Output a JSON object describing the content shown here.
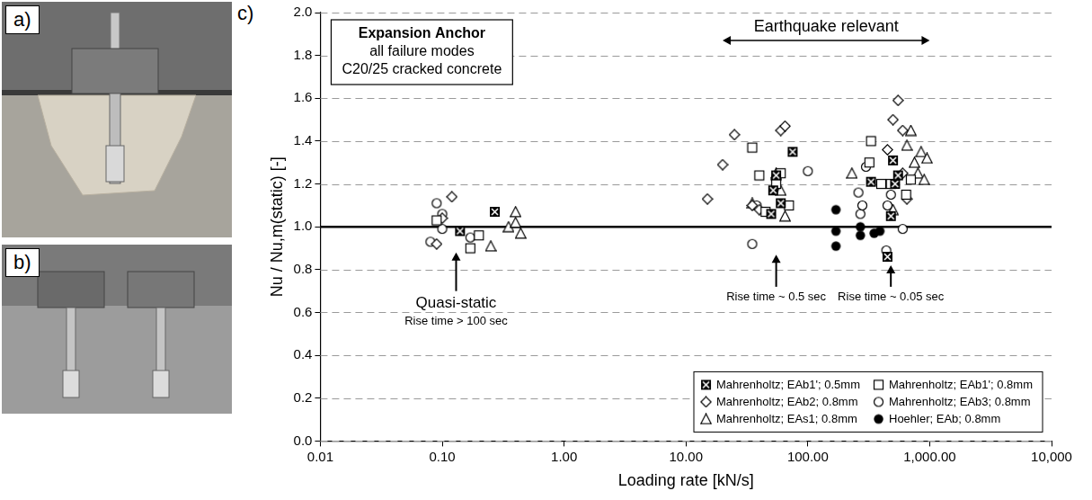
{
  "photos": [
    {
      "label": "a)"
    },
    {
      "label": "b)"
    }
  ],
  "chart_data": {
    "type": "scatter",
    "panel_label": "c)",
    "x_label": "Loading rate [kN/s]",
    "y_label": "Nu / Nu,m(static) [-]",
    "log": "x",
    "grid": true,
    "legend": "lower right",
    "xlim": [
      0.01,
      10000
    ],
    "xticks": [
      0.01,
      {
        "value": 0.1,
        "label": "0.10"
      },
      {
        "value": 1,
        "label": "1.00"
      },
      {
        "value": 10,
        "label": "10.00"
      },
      {
        "value": 100,
        "label": "100.00"
      },
      {
        "value": 1000,
        "label": "1,000.00"
      },
      {
        "value": 10000,
        "label": "10,000"
      }
    ],
    "ylim": [
      0,
      2
    ],
    "yticks": [
      {
        "value": 0,
        "label": "0.0"
      },
      0.2,
      0.4,
      0.6,
      0.8,
      {
        "value": 1,
        "label": "1.0"
      },
      1.2,
      1.4,
      1.6,
      1.8,
      {
        "value": 2,
        "label": "2.0"
      }
    ],
    "reference_line": 1,
    "text_box": [
      "Expansion Anchor",
      "all failure modes",
      "C20/25 cracked concrete"
    ],
    "span_arrow": {
      "text": "Earthquake relevant",
      "x": [
        20,
        1000
      ],
      "y": 1.87
    },
    "arrows": [
      {
        "lines": [
          "Quasi-static",
          "Rise time > 100 sec"
        ],
        "x": 0.13,
        "y": [
          0.7,
          0.88
        ]
      },
      {
        "lines": [
          "Rise time ~ 0.5 sec"
        ],
        "x": 55,
        "y": [
          0.72,
          0.87
        ]
      },
      {
        "lines": [
          "Rise time ~ 0.05 sec"
        ],
        "x": 480,
        "y": [
          0.72,
          0.82
        ]
      }
    ],
    "series": [
      {
        "name": "Mahrenholtz; EAb1'; 0.5mm",
        "color": "#000000",
        "marker": "square_cross",
        "x": [
          0.14,
          0.27,
          50,
          52,
          55,
          60,
          75,
          330,
          450,
          480,
          500,
          520,
          550
        ],
        "values": [
          0.98,
          1.07,
          1.06,
          1.17,
          1.24,
          1.11,
          1.35,
          1.21,
          0.86,
          1.05,
          1.31,
          1.2,
          1.24
        ]
      },
      {
        "name": "Mahrenholtz; EAb1'; 0.8mm",
        "color": "#000000",
        "marker": "square",
        "x": [
          0.09,
          0.17,
          0.2,
          35,
          40,
          45,
          55,
          60,
          70,
          320,
          330,
          400,
          480,
          640,
          700
        ],
        "values": [
          1.03,
          0.9,
          0.96,
          1.37,
          1.24,
          1.07,
          1.2,
          1.25,
          1.1,
          1.3,
          1.4,
          1.2,
          1.2,
          1.15,
          1.22
        ]
      },
      {
        "name": "Mahrenholtz; EAb2; 0.8mm",
        "color": "#000000",
        "marker": "diamond",
        "x": [
          0.09,
          0.1,
          0.12,
          15,
          20,
          25,
          35,
          40,
          55,
          60,
          65,
          450,
          500,
          550,
          600,
          600,
          650
        ],
        "values": [
          0.92,
          1.04,
          1.14,
          1.13,
          1.29,
          1.43,
          1.1,
          1.08,
          1.22,
          1.45,
          1.47,
          1.36,
          1.5,
          1.59,
          1.45,
          1.25,
          1.13
        ]
      },
      {
        "name": "Mahrenholtz; EAb3; 0.8mm",
        "color": "#000000",
        "marker": "circle",
        "x": [
          0.08,
          0.09,
          0.1,
          0.1,
          0.17,
          35,
          38,
          45,
          100,
          260,
          270,
          280,
          300,
          440,
          450,
          480,
          600
        ],
        "values": [
          0.93,
          1.11,
          0.99,
          1.06,
          0.95,
          0.92,
          1.1,
          1.07,
          1.26,
          1.16,
          1.06,
          1.1,
          1.28,
          0.89,
          1.1,
          1.15,
          0.99
        ]
      },
      {
        "name": "Mahrenholtz; EAs1; 0.8mm",
        "color": "#000000",
        "marker": "triangle",
        "x": [
          0.25,
          0.35,
          0.4,
          0.4,
          0.44,
          35,
          55,
          60,
          65,
          230,
          500,
          650,
          700,
          750,
          800,
          850,
          900,
          950
        ],
        "values": [
          0.91,
          1.0,
          1.07,
          1.02,
          0.97,
          1.11,
          1.25,
          1.17,
          1.05,
          1.25,
          1.08,
          1.38,
          1.45,
          1.3,
          1.25,
          1.35,
          1.22,
          1.32
        ]
      },
      {
        "name": "Hoehler; EAb; 0.8mm",
        "color": "#000000",
        "marker": "filled_circle",
        "x": [
          170,
          170,
          170,
          270,
          270,
          350,
          390
        ],
        "values": [
          1.08,
          0.98,
          0.91,
          1.0,
          0.96,
          0.97,
          0.98
        ]
      }
    ]
  }
}
